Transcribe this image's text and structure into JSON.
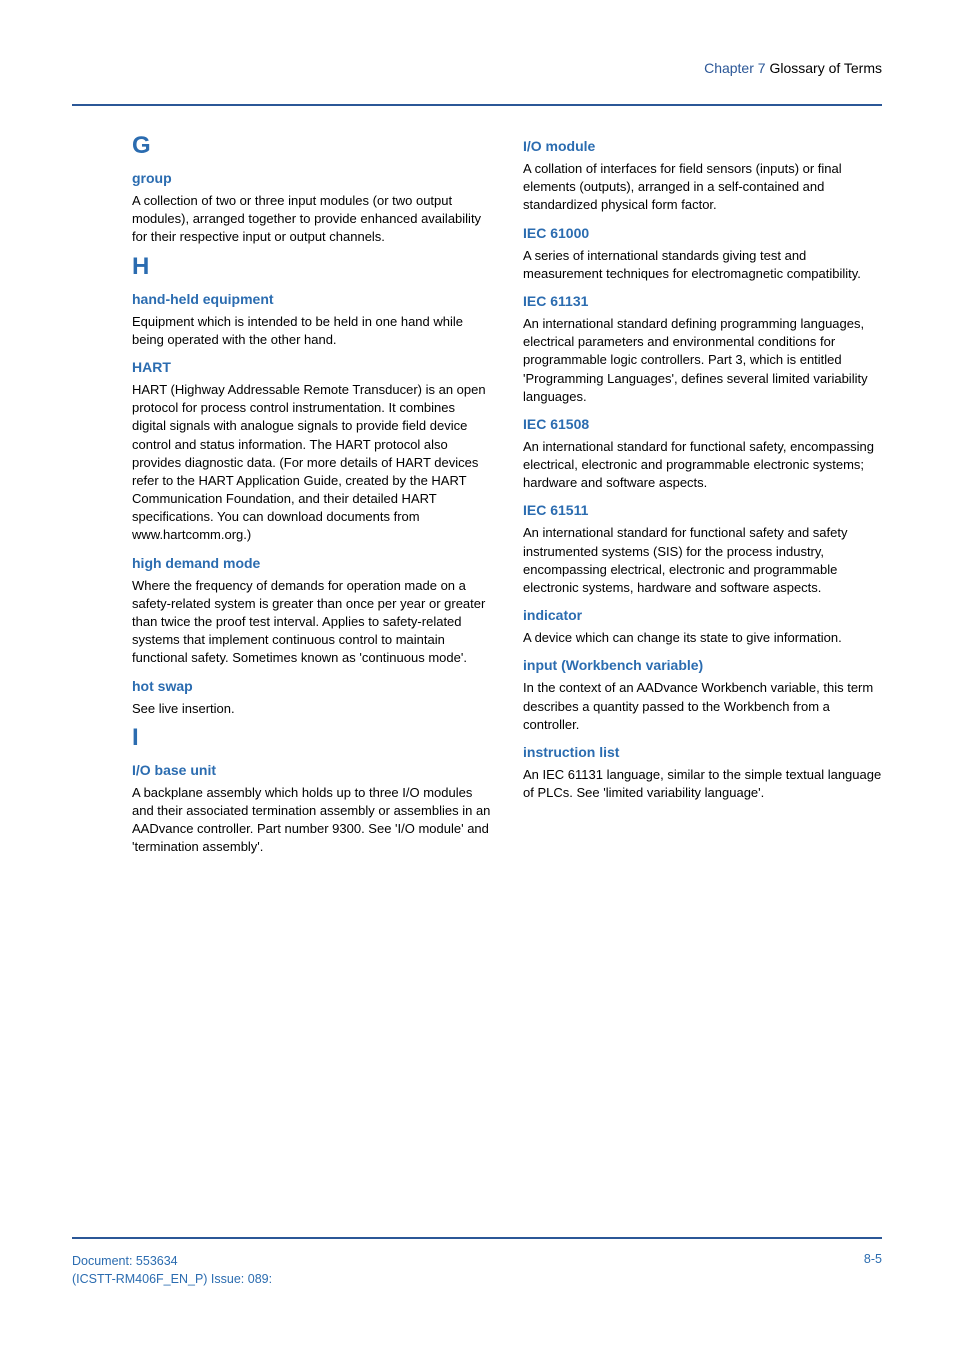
{
  "header": {
    "chapter_label": "Chapter 7 ",
    "chapter_title": "Glossary of Terms"
  },
  "left_col": [
    {
      "type": "letter",
      "text": "G"
    },
    {
      "type": "term",
      "text": "group"
    },
    {
      "type": "def",
      "text": "A collection of two or three input modules (or two output modules), arranged together to provide enhanced availability for their respective input or output channels."
    },
    {
      "type": "letter",
      "text": "H"
    },
    {
      "type": "term",
      "text": "hand-held equipment"
    },
    {
      "type": "def",
      "text": "Equipment which is intended to be held in one hand while being operated with the other hand."
    },
    {
      "type": "term",
      "text": "HART"
    },
    {
      "type": "def",
      "text": "HART (Highway Addressable Remote Transducer) is an open protocol for process control instrumentation. It combines digital signals with analogue signals to provide field device control and status information. The HART protocol also provides diagnostic data. (For more details of HART devices refer to the HART Application Guide, created by the HART Communication Foundation, and their detailed HART specifications. You can download documents from www.hartcomm.org.)"
    },
    {
      "type": "term",
      "text": "high demand mode"
    },
    {
      "type": "def",
      "text": "Where the frequency of demands for operation made on a safety-related system is greater than once per year or greater than twice the proof test interval. Applies to safety-related systems that implement continuous control to maintain functional safety. Sometimes known as 'continuous mode'."
    },
    {
      "type": "term",
      "text": "hot swap"
    },
    {
      "type": "def",
      "text": "See live insertion."
    },
    {
      "type": "letter",
      "text": "I"
    },
    {
      "type": "term",
      "text": "I/O base unit"
    },
    {
      "type": "def",
      "text": "A backplane assembly which holds up to three I/O modules and their associated termination assembly or assemblies in an AADvance controller. Part number 9300. See 'I/O module' and 'termination assembly'."
    }
  ],
  "right_col": [
    {
      "type": "term",
      "text": "I/O module"
    },
    {
      "type": "def",
      "text": "A collation of interfaces for field sensors (inputs) or final elements (outputs), arranged in a self-contained and standardized physical form factor."
    },
    {
      "type": "term",
      "text": "IEC 61000"
    },
    {
      "type": "def",
      "text": "A series of international standards giving test and measurement techniques for electromagnetic compatibility."
    },
    {
      "type": "term",
      "text": "IEC 61131"
    },
    {
      "type": "def",
      "text": "An international standard defining programming languages, electrical parameters and environmental conditions for programmable logic controllers. Part 3, which is entitled 'Programming Languages', defines several limited variability languages."
    },
    {
      "type": "term",
      "text": "IEC 61508"
    },
    {
      "type": "def",
      "text": "An international standard for functional safety, encompassing electrical, electronic and programmable electronic systems; hardware and software aspects."
    },
    {
      "type": "term",
      "text": "IEC 61511"
    },
    {
      "type": "def",
      "text": "An international standard for functional safety and safety instrumented systems (SIS) for the process industry, encompassing electrical, electronic and programmable electronic systems, hardware and software aspects."
    },
    {
      "type": "term",
      "text": "indicator"
    },
    {
      "type": "def",
      "text": "A device which can change its state to give information."
    },
    {
      "type": "term",
      "text": "input (Workbench variable)"
    },
    {
      "type": "def",
      "text": "In the context of an AADvance Workbench variable, this term describes a quantity passed to the Workbench from a controller."
    },
    {
      "type": "term",
      "text": "instruction list"
    },
    {
      "type": "def",
      "text": "An IEC 61131 language, similar to the simple textual language of PLCs. See 'limited variability language'."
    }
  ],
  "footer": {
    "doc_line1": "Document: 553634",
    "doc_line2": "(ICSTT-RM406F_EN_P) Issue: 089:",
    "page": "8-5"
  },
  "colors": {
    "blue": "#2b6cb0",
    "divider": "#2b5797",
    "text": "#000000"
  }
}
